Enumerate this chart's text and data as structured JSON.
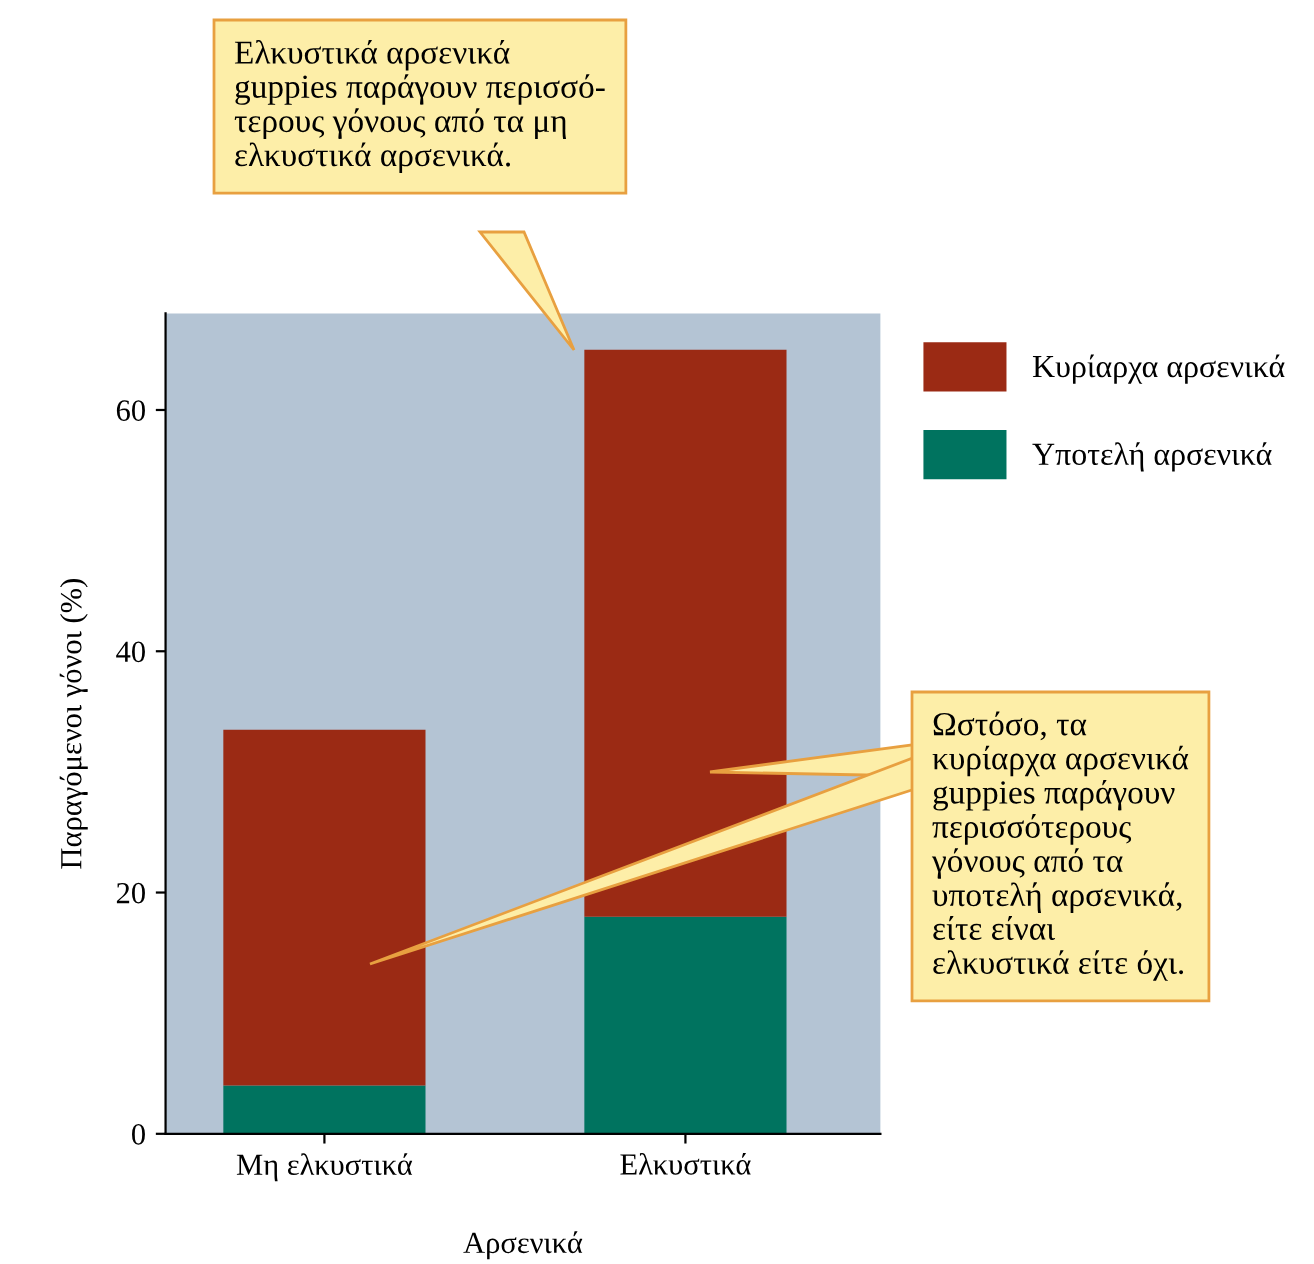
{
  "chart_data": {
    "type": "bar",
    "stacked": true,
    "xlabel": "Αρσενικά",
    "ylabel": "Παραγόμενοι γόνοι (%)",
    "categories": [
      "Μη ελκυστικά",
      "Ελκυστικά"
    ],
    "series": [
      {
        "name": "Υποτελή αρσενικά",
        "color": "#00735f",
        "values": [
          4,
          18
        ]
      },
      {
        "name": "Κυρίαρχα αρσενικά",
        "color": "#9b2a14",
        "values": [
          29.5,
          47
        ]
      }
    ],
    "ylim": [
      0,
      68
    ],
    "yticks": [
      0,
      20,
      40,
      60
    ],
    "grid": false,
    "legend": "top right",
    "annotations": [
      "Ελκυστικά αρσενικά\nguppies παράγουν περισσό-\nτερους γόνους από τα μη\nελκυστικά αρσενικά.",
      "Ωστόσο, τα\nκυρίαρχα αρσενικά\nguppies παράγουν\nπερισσότερους\nγόνους από τα\nυποτελή αρσενικά,\nείτε είναι\nελκυστικά είτε όχι."
    ]
  }
}
